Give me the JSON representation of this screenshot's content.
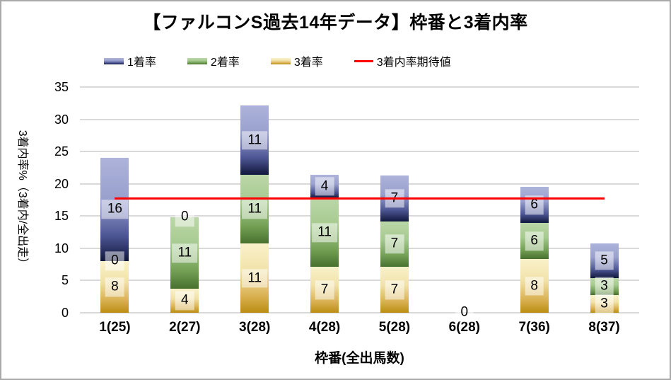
{
  "title": "【ファルコンS過去14年データ】枠番と3着内率",
  "legend": {
    "items": [
      {
        "label": "1着率",
        "key": "win"
      },
      {
        "label": "2着率",
        "key": "second"
      },
      {
        "label": "3着率",
        "key": "third"
      },
      {
        "label": "3着内率期待値",
        "key": "expected"
      }
    ]
  },
  "y_axis": {
    "title": "3着内率%（3着内/全出走）",
    "ticks": [
      0,
      5,
      10,
      15,
      20,
      25,
      30,
      35
    ],
    "max": 35
  },
  "x_axis": {
    "title": "枠番(全出馬数)"
  },
  "chart_data": {
    "type": "bar",
    "stacked": true,
    "title": "【ファルコンS過去14年データ】枠番と3着内率",
    "categories": [
      "1(25)",
      "2(27)",
      "3(28)",
      "4(28)",
      "5(28)",
      "6(28)",
      "7(36)",
      "8(37)"
    ],
    "ylim": [
      0,
      35
    ],
    "grid": true,
    "grid_color": "#d9d9d9",
    "legend_position": "top",
    "series": [
      {
        "name": "3着率",
        "key": "third",
        "values": [
          8,
          3.7,
          10.7,
          7.1,
          7.1,
          0,
          8.3,
          2.7
        ],
        "labels": [
          "8",
          "4",
          "11",
          "7",
          "7",
          "",
          "8",
          "3"
        ],
        "gradient": [
          "#f9f1ca",
          "#f1e2a9",
          "#dab254",
          "#bb8d12"
        ]
      },
      {
        "name": "2着率",
        "key": "second",
        "values": [
          0,
          11.1,
          10.7,
          10.7,
          7.1,
          0,
          5.6,
          2.7
        ],
        "labels": [
          "0",
          "11",
          "11",
          "11",
          "7",
          "",
          "6",
          "3"
        ],
        "gradient": [
          "#bbd7a8",
          "#a6ca8f",
          "#73a054",
          "#47702e"
        ]
      },
      {
        "name": "1着率",
        "key": "win",
        "values": [
          16,
          0,
          10.7,
          3.6,
          7.1,
          0,
          5.6,
          5.4
        ],
        "labels": [
          "16",
          "0",
          "11",
          "4",
          "7",
          "",
          "6",
          "5"
        ],
        "gradient": [
          "#adb3da",
          "#99a0cd",
          "#4e5795",
          "#10173c"
        ]
      }
    ],
    "baseline_labels": [
      {
        "category_index": 5,
        "text": "0"
      }
    ],
    "expected_line": {
      "name": "3着内率期待値",
      "value": 17.7,
      "color": "#ff0000"
    }
  }
}
